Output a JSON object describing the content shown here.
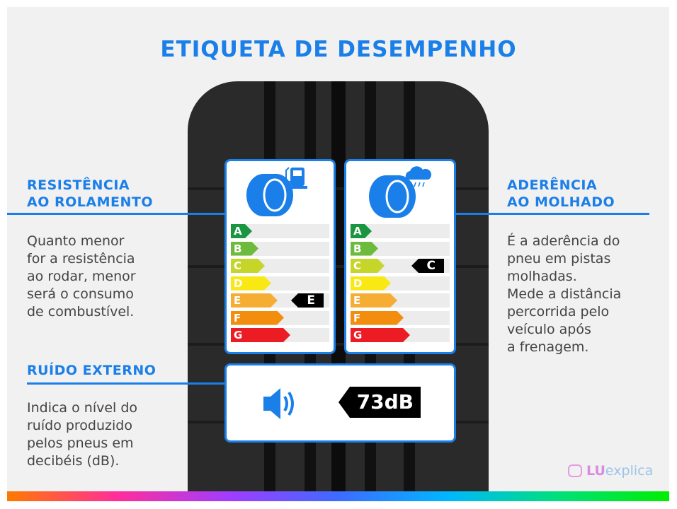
{
  "title": "ETIQUETA DE DESEMPENHO",
  "left": {
    "rolling": {
      "heading1": "RESISTÊNCIA",
      "heading2": "AO ROLAMENTO",
      "lines": [
        "Quanto menor",
        "for a resistência",
        "ao rodar, menor",
        "será o consumo",
        "de combustível."
      ]
    },
    "noise": {
      "heading": "RUÍDO EXTERNO",
      "lines": [
        "Indica o nível do",
        "ruído produzido",
        "pelos pneus em",
        "decibéis (dB)."
      ]
    }
  },
  "right": {
    "wet": {
      "heading1": "ADERÊNCIA",
      "heading2": "AO MOLHADO",
      "lines": [
        "É a aderência do",
        "pneu em pistas",
        "molhadas.",
        "Mede a distância",
        "percorrida pelo",
        "veículo após",
        "a frenagem."
      ]
    }
  },
  "grades": [
    "A",
    "B",
    "C",
    "D",
    "E",
    "F",
    "G"
  ],
  "grade_colors": [
    "#1a9641",
    "#6cbb3c",
    "#c6d52a",
    "#f9e814",
    "#f6ad33",
    "#f28d0d",
    "#ec1c24"
  ],
  "cards": {
    "fuel": {
      "icon": "fuel-pump-icon",
      "rating": "E"
    },
    "wet": {
      "icon": "rain-cloud-icon",
      "rating": "C"
    },
    "noise": {
      "icon": "speaker-icon",
      "value": "73dB"
    }
  },
  "brand": {
    "lu": "LU",
    "explica": "explica"
  },
  "accent": "#1a7fe8"
}
